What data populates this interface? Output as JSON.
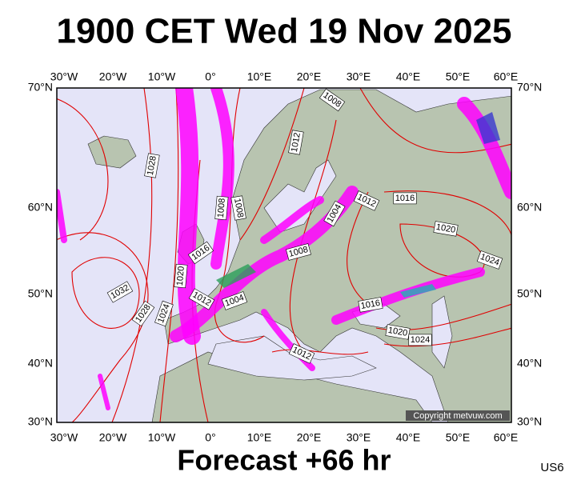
{
  "header": {
    "title": "1900 CET Wed 19 Nov 2025"
  },
  "footer": {
    "forecast": "Forecast +66 hr",
    "code": "US6"
  },
  "map": {
    "lon_labels": [
      "30°W",
      "20°W",
      "10°W",
      "0°",
      "10°E",
      "20°E",
      "30°E",
      "40°E",
      "50°E",
      "60°E"
    ],
    "lat_labels": [
      "70°N",
      "60°N",
      "50°N",
      "40°N",
      "30°N"
    ],
    "isobar_labels": [
      "1008",
      "1012",
      "1028",
      "1008",
      "1008",
      "1012",
      "1016",
      "1004",
      "1020",
      "1016",
      "1008",
      "1024",
      "1020",
      "1032",
      "1012",
      "1004",
      "1016",
      "1028",
      "1024",
      "1020",
      "1024",
      "1012"
    ],
    "copyright": "Copyright metvuw.com"
  }
}
